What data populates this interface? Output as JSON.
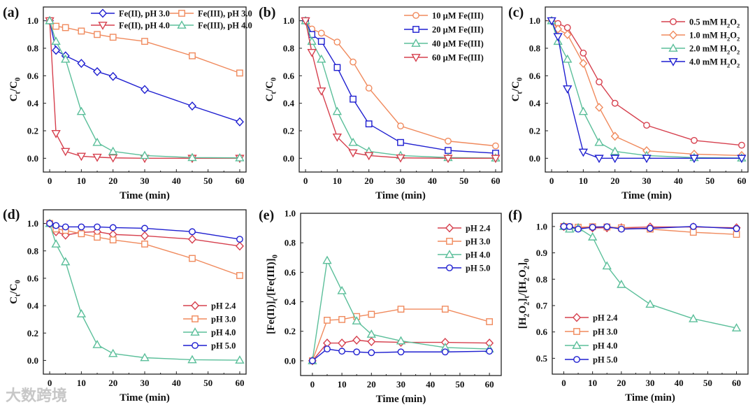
{
  "colors": {
    "blue": "#1f1fd0",
    "orange": "#f08a5d",
    "red": "#d6404e",
    "green": "#5bbf9a",
    "axis": "#222222"
  },
  "watermark": "大数跨境",
  "chart_data": [
    {
      "panel": "(a)",
      "type": "line",
      "xlabel": "Time (min)",
      "ylabel": "C_t/C_0",
      "xlim": [
        -2,
        62
      ],
      "ylim": [
        -0.1,
        1.1
      ],
      "xticks": [
        0,
        10,
        20,
        30,
        40,
        50,
        60
      ],
      "yticks": [
        0.0,
        0.2,
        0.4,
        0.6,
        0.8,
        1.0
      ],
      "ytick_decimals": 1,
      "legend": "top-right, two columns",
      "x": [
        0,
        2,
        5,
        10,
        15,
        20,
        30,
        45,
        60
      ],
      "series": [
        {
          "name": "Fe(II), pH 3.0",
          "marker": "diamond",
          "color": "blue",
          "values": [
            1,
            0.785,
            0.745,
            0.69,
            0.63,
            0.595,
            0.5,
            0.38,
            0.265
          ]
        },
        {
          "name": "Fe(III), pH 3.0",
          "marker": "square",
          "color": "orange",
          "values": [
            1,
            0.96,
            0.95,
            0.925,
            0.9,
            0.88,
            0.85,
            0.745,
            0.62
          ]
        },
        {
          "name": "Fe(II), pH 4.0",
          "marker": "down-triangle",
          "color": "red",
          "values": [
            1,
            0.18,
            0.05,
            0.015,
            0.008,
            0.003,
            0,
            0,
            0
          ]
        },
        {
          "name": "Fe(III), pH 4.0",
          "marker": "triangle",
          "color": "green",
          "values": [
            1,
            0.85,
            0.72,
            0.34,
            0.115,
            0.05,
            0.02,
            0.005,
            0.003
          ]
        }
      ]
    },
    {
      "panel": "(b)",
      "type": "line",
      "xlabel": "Time (min)",
      "ylabel": "C_t/C_0",
      "xlim": [
        -2,
        62
      ],
      "ylim": [
        -0.1,
        1.1
      ],
      "xticks": [
        0,
        10,
        20,
        30,
        40,
        50,
        60
      ],
      "yticks": [
        0.0,
        0.2,
        0.4,
        0.6,
        0.8,
        1.0
      ],
      "ytick_decimals": 1,
      "legend": "top-right",
      "x": [
        0,
        2,
        5,
        10,
        15,
        20,
        30,
        45,
        60
      ],
      "series": [
        {
          "name": "10 μM Fe(III)",
          "marker": "circle",
          "color": "orange",
          "values": [
            1,
            0.94,
            0.91,
            0.845,
            0.7,
            0.51,
            0.235,
            0.125,
            0.09
          ]
        },
        {
          "name": "20 μM Fe(III)",
          "marker": "square",
          "color": "blue",
          "values": [
            1,
            0.9,
            0.85,
            0.66,
            0.43,
            0.25,
            0.115,
            0.057,
            0.037
          ]
        },
        {
          "name": "40 μM Fe(III)",
          "marker": "triangle",
          "color": "green",
          "values": [
            1,
            0.85,
            0.72,
            0.34,
            0.115,
            0.05,
            0.02,
            0.005,
            0.002
          ]
        },
        {
          "name": "60 μM Fe(III)",
          "marker": "down-triangle",
          "color": "red",
          "values": [
            1,
            0.77,
            0.49,
            0.155,
            0.04,
            0.02,
            0.003,
            0,
            0
          ]
        }
      ]
    },
    {
      "panel": "(c)",
      "type": "line",
      "xlabel": "Time (min)",
      "ylabel": "C_t/C_0",
      "xlim": [
        -2,
        62
      ],
      "ylim": [
        -0.1,
        1.1
      ],
      "xticks": [
        0,
        10,
        20,
        30,
        40,
        50,
        60
      ],
      "yticks": [
        0.0,
        0.2,
        0.4,
        0.6,
        0.8,
        1.0
      ],
      "ytick_decimals": 1,
      "legend": "top-right",
      "x": [
        0,
        2,
        5,
        10,
        15,
        20,
        30,
        45,
        60
      ],
      "series": [
        {
          "name": "0.5 mM H_2O_2",
          "marker": "circle",
          "color": "red",
          "values": [
            1,
            0.98,
            0.95,
            0.765,
            0.555,
            0.4,
            0.24,
            0.13,
            0.095
          ]
        },
        {
          "name": "1.0 mM H_2O_2",
          "marker": "diamond",
          "color": "orange",
          "values": [
            1,
            0.94,
            0.9,
            0.69,
            0.37,
            0.16,
            0.055,
            0.03,
            0.02
          ]
        },
        {
          "name": "2.0 mM H_2O_2",
          "marker": "triangle",
          "color": "green",
          "values": [
            1,
            0.85,
            0.72,
            0.34,
            0.115,
            0.05,
            0.02,
            0.005,
            0.002
          ]
        },
        {
          "name": "4.0 mM H_2O_2",
          "marker": "down-triangle",
          "color": "blue",
          "values": [
            1,
            0.885,
            0.505,
            0.045,
            0,
            0,
            0,
            0,
            0
          ]
        }
      ]
    },
    {
      "panel": "(d)",
      "type": "line",
      "xlabel": "Time (min)",
      "ylabel": "C_t/C_0",
      "xlim": [
        -2,
        62
      ],
      "ylim": [
        -0.1,
        1.1
      ],
      "xticks": [
        0,
        10,
        20,
        30,
        40,
        50,
        60
      ],
      "yticks": [
        0.0,
        0.2,
        0.4,
        0.6,
        0.8,
        1.0
      ],
      "ytick_decimals": 1,
      "legend": "center-right",
      "x": [
        0,
        2,
        5,
        10,
        15,
        20,
        30,
        45,
        60
      ],
      "series": [
        {
          "name": "pH 2.4",
          "marker": "diamond",
          "color": "red",
          "values": [
            1,
            0.94,
            0.915,
            0.935,
            0.94,
            0.92,
            0.91,
            0.885,
            0.835
          ]
        },
        {
          "name": "pH 3.0",
          "marker": "square",
          "color": "orange",
          "values": [
            1,
            0.96,
            0.95,
            0.925,
            0.9,
            0.88,
            0.85,
            0.745,
            0.62
          ]
        },
        {
          "name": "pH 4.0",
          "marker": "triangle",
          "color": "green",
          "values": [
            1,
            0.85,
            0.72,
            0.34,
            0.115,
            0.05,
            0.02,
            0.005,
            0.002
          ]
        },
        {
          "name": "pH 5.0",
          "marker": "circle",
          "color": "blue",
          "values": [
            1,
            0.985,
            0.975,
            0.975,
            0.975,
            0.97,
            0.965,
            0.94,
            0.885
          ]
        }
      ]
    },
    {
      "panel": "(e)",
      "type": "line",
      "xlabel": "Time (min)",
      "ylabel": "[Fe(II)]_t/[Fe(III)]_0",
      "xlim": [
        -4,
        64
      ],
      "ylim": [
        -0.1,
        1.0
      ],
      "xticks": [
        0,
        10,
        20,
        30,
        40,
        50,
        60
      ],
      "yticks": [
        0.0,
        0.2,
        0.4,
        0.6,
        0.8,
        1.0
      ],
      "ytick_decimals": 1,
      "legend": "top-right",
      "x": [
        0,
        5,
        10,
        15,
        20,
        30,
        45,
        60
      ],
      "series": [
        {
          "name": "pH 2.4",
          "marker": "diamond",
          "color": "red",
          "values": [
            0,
            0.12,
            0.12,
            0.14,
            0.13,
            0.125,
            0.125,
            0.12
          ]
        },
        {
          "name": "pH 3.0",
          "marker": "square",
          "color": "orange",
          "values": [
            0,
            0.275,
            0.28,
            0.3,
            0.315,
            0.35,
            0.35,
            0.265
          ]
        },
        {
          "name": "pH 4.0",
          "marker": "triangle",
          "color": "green",
          "values": [
            0,
            0.68,
            0.475,
            0.27,
            0.18,
            0.135,
            0.09,
            0.08
          ]
        },
        {
          "name": "pH 5.0",
          "marker": "circle",
          "color": "blue",
          "values": [
            0,
            0.08,
            0.065,
            0.06,
            0.055,
            0.06,
            0.06,
            0.065
          ]
        }
      ]
    },
    {
      "panel": "(f)",
      "type": "line",
      "xlabel": "Time (min)",
      "ylabel": "[H_2O_2]_t/[H_2O_2]_0",
      "xlim": [
        -4,
        64
      ],
      "ylim": [
        0.44,
        1.05
      ],
      "xticks": [
        0,
        10,
        20,
        30,
        40,
        50,
        60
      ],
      "yticks": [
        0.5,
        0.6,
        0.7,
        0.8,
        0.9,
        1.0
      ],
      "ytick_decimals": 1,
      "legend": "bottom-left",
      "x": [
        0,
        2,
        5,
        10,
        15,
        20,
        30,
        45,
        60
      ],
      "series": [
        {
          "name": "pH 2.4",
          "marker": "diamond",
          "color": "red",
          "values": [
            1,
            0.995,
            0.995,
            0.995,
            0.995,
            0.995,
            0.998,
            0.998,
            0.995
          ]
        },
        {
          "name": "pH 3.0",
          "marker": "square",
          "color": "orange",
          "values": [
            1,
            0.998,
            0.997,
            0.999,
            0.998,
            0.995,
            0.99,
            0.978,
            0.97
          ]
        },
        {
          "name": "pH 4.0",
          "marker": "triangle",
          "color": "green",
          "values": [
            1,
            0.99,
            0.995,
            0.96,
            0.85,
            0.78,
            0.705,
            0.65,
            0.615
          ]
        },
        {
          "name": "pH 5.0",
          "marker": "circle",
          "color": "blue",
          "values": [
            1,
            1,
            0.99,
            0.997,
            0.999,
            0.99,
            0.993,
            1,
            0.992
          ]
        }
      ]
    }
  ]
}
